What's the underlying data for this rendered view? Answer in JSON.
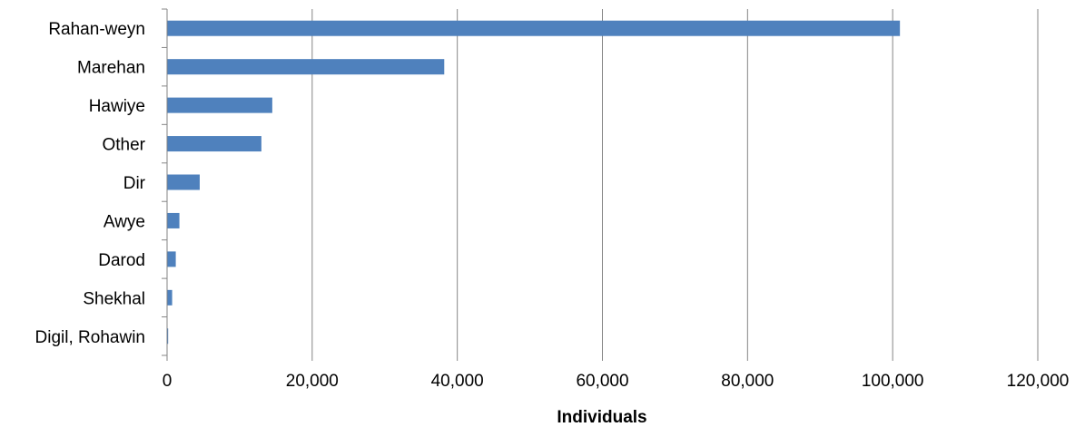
{
  "chart_data": {
    "type": "bar",
    "orientation": "horizontal",
    "categories": [
      "Rahan-weyn",
      "Marehan",
      "Hawiye",
      "Other",
      "Dir",
      "Awye",
      "Darod",
      "Shekhal",
      "Digil, Rohawin"
    ],
    "values": [
      101000,
      38200,
      14500,
      13000,
      4500,
      1700,
      1200,
      700,
      150
    ],
    "title": "",
    "xlabel": "Individuals",
    "ylabel": "",
    "xlim": [
      0,
      120000
    ],
    "xticks": [
      0,
      20000,
      40000,
      60000,
      80000,
      100000,
      120000
    ],
    "xtick_labels": [
      "0",
      "20,000",
      "40,000",
      "60,000",
      "80,000",
      "100,000",
      "120,000"
    ],
    "grid": "vertical",
    "legend": "none",
    "bar_color": "#4f81bd",
    "gridline_color": "#868686"
  }
}
